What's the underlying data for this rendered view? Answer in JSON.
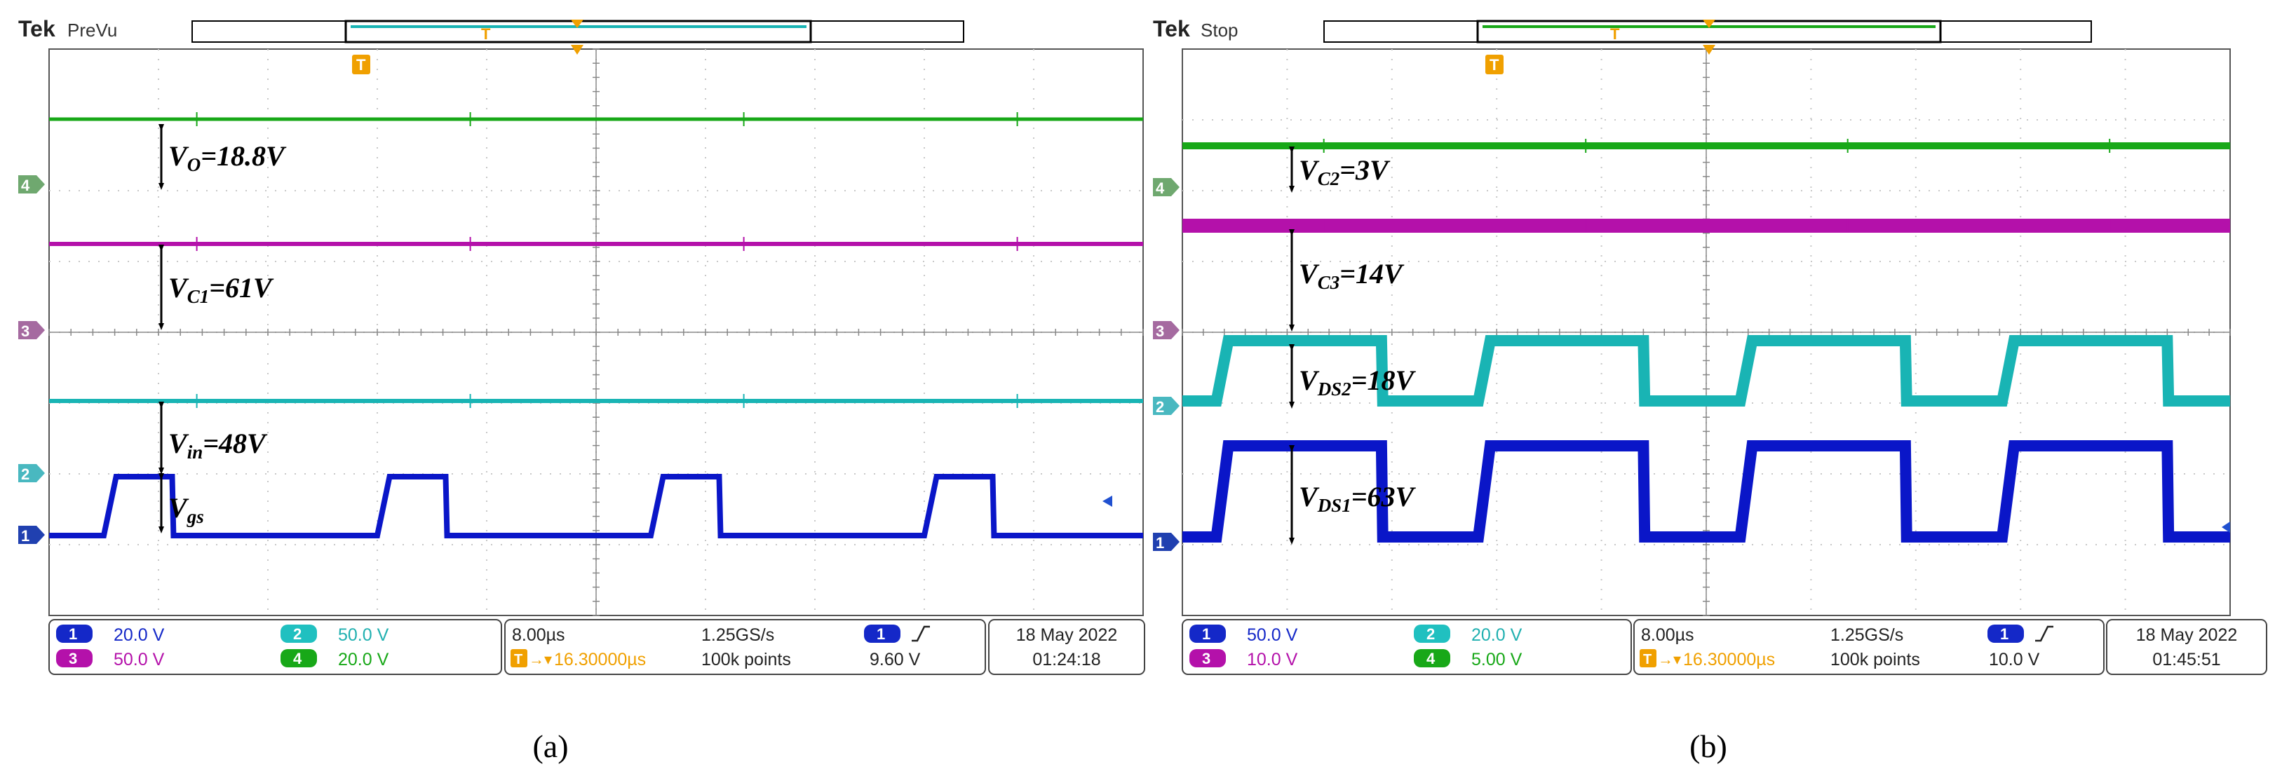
{
  "colors": {
    "ch1": "#0a16c8",
    "ch2": "#19b4b4",
    "ch3": "#b411aa",
    "ch4": "#18a818",
    "grid": "#c8c8c8",
    "trigger": "#f0a000"
  },
  "chart_data": [
    {
      "type": "line",
      "panel": "a",
      "brand": "Tek",
      "status": "PreVu",
      "caption": "(a)",
      "xlim": [
        0,
        80
      ],
      "divisions": 10,
      "channels": [
        {
          "id": "1",
          "scale": "20.0 V"
        },
        {
          "id": "2",
          "scale": "50.0 V"
        },
        {
          "id": "3",
          "scale": "50.0 V"
        },
        {
          "id": "4",
          "scale": "20.0 V"
        }
      ],
      "timebase": "8.00µs",
      "trigger_delay": "16.30000µs",
      "sample_rate": "1.25GS/s",
      "record_length": "100k points",
      "trigger_channel": "1",
      "trigger_level": "9.60 V",
      "date": "18 May 2022",
      "time": "01:24:18",
      "series": [
        {
          "channel": "4",
          "quantity": "V_O",
          "value": 18.8,
          "unit": "V",
          "shape": "dc"
        },
        {
          "channel": "3",
          "quantity": "V_C1",
          "value": 61,
          "unit": "V",
          "shape": "dc"
        },
        {
          "channel": "2",
          "quantity": "V_in",
          "value": 48,
          "unit": "V",
          "shape": "dc"
        },
        {
          "channel": "1",
          "quantity": "V_gs",
          "unit": "V",
          "shape": "pulse",
          "period_us": 20,
          "high_us": [
            [
              4,
              9
            ],
            [
              24,
              29
            ],
            [
              44,
              49
            ],
            [
              64,
              69
            ]
          ]
        }
      ],
      "annotations": [
        {
          "base": "V",
          "sub": "O",
          "text": "=18.8V"
        },
        {
          "base": "V",
          "sub": "C1",
          "text": "=61V"
        },
        {
          "base": "V",
          "sub": "in",
          "text": "=48V"
        },
        {
          "base": "V",
          "sub": "gs",
          "text": ""
        }
      ]
    },
    {
      "type": "line",
      "panel": "b",
      "brand": "Tek",
      "status": "Stop",
      "caption": "(b)",
      "xlim": [
        0,
        80
      ],
      "divisions": 10,
      "channels": [
        {
          "id": "1",
          "scale": "50.0 V"
        },
        {
          "id": "2",
          "scale": "20.0 V"
        },
        {
          "id": "3",
          "scale": "10.0 V"
        },
        {
          "id": "4",
          "scale": "5.00 V"
        }
      ],
      "timebase": "8.00µs",
      "trigger_delay": "16.30000µs",
      "sample_rate": "1.25GS/s",
      "record_length": "100k points",
      "trigger_channel": "1",
      "trigger_level": "10.0 V",
      "date": "18 May 2022",
      "time": "01:45:51",
      "series": [
        {
          "channel": "4",
          "quantity": "V_C2",
          "value": 3,
          "unit": "V",
          "shape": "dc"
        },
        {
          "channel": "3",
          "quantity": "V_C3",
          "value": 14,
          "unit": "V",
          "shape": "dc"
        },
        {
          "channel": "2",
          "quantity": "V_DS2",
          "value": 18,
          "unit": "V",
          "shape": "pulse",
          "period_us": 20,
          "high_us": [
            [
              2.6,
              15.2
            ],
            [
              22.6,
              35.2
            ],
            [
              42.6,
              55.2
            ],
            [
              62.6,
              75.2
            ]
          ]
        },
        {
          "channel": "1",
          "quantity": "V_DS1",
          "value": 63,
          "unit": "V",
          "shape": "pulse",
          "period_us": 20,
          "high_us": [
            [
              2.6,
              15.2
            ],
            [
              22.6,
              35.2
            ],
            [
              42.6,
              55.2
            ],
            [
              62.6,
              75.2
            ]
          ]
        }
      ],
      "annotations": [
        {
          "base": "V",
          "sub": "C2",
          "text": "=3V"
        },
        {
          "base": "V",
          "sub": "C3",
          "text": "=14V"
        },
        {
          "base": "V",
          "sub": "DS2",
          "text": "=18V"
        },
        {
          "base": "V",
          "sub": "DS1",
          "text": "=63V"
        }
      ]
    }
  ]
}
